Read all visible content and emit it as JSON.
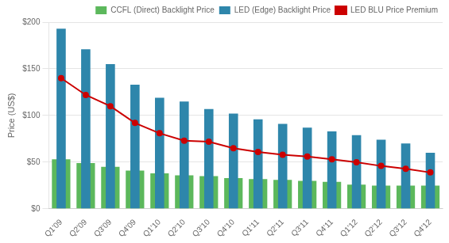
{
  "chart_data": {
    "type": "bar",
    "categories": [
      "Q1'09",
      "Q2'09",
      "Q3'09",
      "Q4'09",
      "Q1'10",
      "Q2'10",
      "Q3'10",
      "Q4'10",
      "Q1'11",
      "Q2'11",
      "Q3'11",
      "Q4'11",
      "Q1'12",
      "Q2'12",
      "Q3'12",
      "Q4'12"
    ],
    "ylabel": "Price (US$)",
    "ylim": [
      0,
      200
    ],
    "yticks": [
      {
        "value": 0,
        "label": "$0"
      },
      {
        "value": 50,
        "label": "$50"
      },
      {
        "value": 100,
        "label": "$100"
      },
      {
        "value": 150,
        "label": "$150"
      },
      {
        "value": 200,
        "label": "$200"
      }
    ],
    "grid": true,
    "legend": "upper right",
    "series": [
      {
        "name": "CCFL (Direct) Backlight Price",
        "type": "bar",
        "color": "#5CB85C",
        "values": [
          53,
          49,
          45,
          41,
          38,
          36,
          35,
          33,
          32,
          31,
          30,
          29,
          26,
          25,
          25,
          25
        ]
      },
      {
        "name": "LED (Edge) Backlight Price",
        "type": "bar",
        "color": "#2E86AB",
        "values": [
          193,
          171,
          155,
          133,
          119,
          115,
          107,
          102,
          96,
          91,
          87,
          83,
          79,
          74,
          70,
          60
        ]
      },
      {
        "name": "LED BLU Price Premium",
        "type": "line",
        "color": "#CC0000",
        "marker": "circle",
        "values": [
          140,
          122,
          110,
          92,
          81,
          73,
          72,
          65,
          61,
          58,
          56,
          53,
          50,
          46,
          43,
          39
        ]
      }
    ]
  }
}
